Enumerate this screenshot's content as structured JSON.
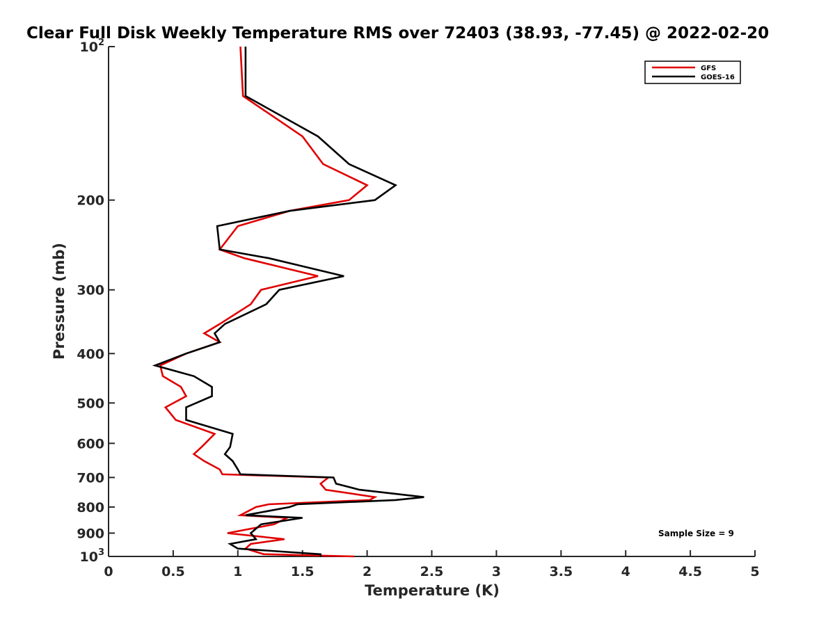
{
  "chart_data": {
    "type": "line",
    "title": "Clear Full Disk Weekly Temperature RMS over 72403 (38.93, -77.45) @ 2022-02-20",
    "xlabel": "Temperature (K)",
    "ylabel": "Pressure (mb)",
    "xlim": [
      0,
      5
    ],
    "ylim": [
      100,
      1000
    ],
    "y_scale": "log",
    "y_reversed": true,
    "grid": false,
    "legend_position": "top-right",
    "x_ticks": [
      "0",
      "0.5",
      "1",
      "1.5",
      "2",
      "2.5",
      "3",
      "3.5",
      "4",
      "4.5",
      "5"
    ],
    "y_ticks": [
      {
        "value": 100,
        "base": "10",
        "exp": "2",
        "label": ""
      },
      {
        "value": 200,
        "label": "200"
      },
      {
        "value": 300,
        "label": "300"
      },
      {
        "value": 400,
        "label": "400"
      },
      {
        "value": 500,
        "label": "500"
      },
      {
        "value": 600,
        "label": "600"
      },
      {
        "value": 700,
        "label": "700"
      },
      {
        "value": 800,
        "label": "800"
      },
      {
        "value": 900,
        "label": "900"
      },
      {
        "value": 1000,
        "base": "10",
        "exp": "3",
        "label": ""
      }
    ],
    "annotation": "Sample Size = 9",
    "series": [
      {
        "name": "GFS",
        "color": "#e00000",
        "points": [
          [
            1.02,
            100
          ],
          [
            1.04,
            125
          ],
          [
            1.5,
            150
          ],
          [
            1.66,
            170
          ],
          [
            2.0,
            187
          ],
          [
            1.86,
            200
          ],
          [
            1.4,
            210
          ],
          [
            1.0,
            225
          ],
          [
            0.86,
            250
          ],
          [
            1.05,
            260
          ],
          [
            1.62,
            282
          ],
          [
            1.18,
            300
          ],
          [
            1.1,
            320
          ],
          [
            0.86,
            350
          ],
          [
            0.74,
            365
          ],
          [
            0.86,
            380
          ],
          [
            0.6,
            400
          ],
          [
            0.4,
            422
          ],
          [
            0.42,
            443
          ],
          [
            0.56,
            465
          ],
          [
            0.6,
            485
          ],
          [
            0.44,
            510
          ],
          [
            0.52,
            540
          ],
          [
            0.82,
            575
          ],
          [
            0.72,
            610
          ],
          [
            0.66,
            630
          ],
          [
            0.74,
            650
          ],
          [
            0.86,
            675
          ],
          [
            0.88,
            690
          ],
          [
            1.7,
            700
          ],
          [
            1.64,
            720
          ],
          [
            1.68,
            740
          ],
          [
            2.06,
            765
          ],
          [
            2.02,
            775
          ],
          [
            1.24,
            790
          ],
          [
            1.14,
            800
          ],
          [
            1.02,
            830
          ],
          [
            1.38,
            840
          ],
          [
            1.28,
            865
          ],
          [
            0.92,
            900
          ],
          [
            1.36,
            925
          ],
          [
            1.1,
            945
          ],
          [
            1.06,
            965
          ],
          [
            1.2,
            990
          ],
          [
            1.9,
            1000
          ]
        ]
      },
      {
        "name": "GOES-16",
        "color": "#000000",
        "points": [
          [
            1.06,
            100
          ],
          [
            1.06,
            125
          ],
          [
            1.62,
            150
          ],
          [
            1.86,
            170
          ],
          [
            2.22,
            187
          ],
          [
            2.06,
            200
          ],
          [
            1.4,
            210
          ],
          [
            0.84,
            225
          ],
          [
            0.86,
            250
          ],
          [
            1.24,
            260
          ],
          [
            1.82,
            282
          ],
          [
            1.32,
            300
          ],
          [
            1.22,
            320
          ],
          [
            0.9,
            350
          ],
          [
            0.82,
            365
          ],
          [
            0.86,
            380
          ],
          [
            0.6,
            400
          ],
          [
            0.36,
            422
          ],
          [
            0.66,
            443
          ],
          [
            0.8,
            465
          ],
          [
            0.8,
            485
          ],
          [
            0.6,
            510
          ],
          [
            0.6,
            540
          ],
          [
            0.96,
            575
          ],
          [
            0.94,
            610
          ],
          [
            0.9,
            630
          ],
          [
            0.96,
            650
          ],
          [
            1.0,
            675
          ],
          [
            1.02,
            690
          ],
          [
            1.74,
            700
          ],
          [
            1.76,
            720
          ],
          [
            1.94,
            740
          ],
          [
            2.44,
            765
          ],
          [
            2.22,
            775
          ],
          [
            1.46,
            790
          ],
          [
            1.4,
            800
          ],
          [
            1.06,
            830
          ],
          [
            1.5,
            840
          ],
          [
            1.18,
            865
          ],
          [
            1.1,
            900
          ],
          [
            1.14,
            925
          ],
          [
            0.94,
            945
          ],
          [
            1.0,
            965
          ],
          [
            1.64,
            990
          ],
          [
            1.64,
            1000
          ]
        ]
      }
    ]
  }
}
